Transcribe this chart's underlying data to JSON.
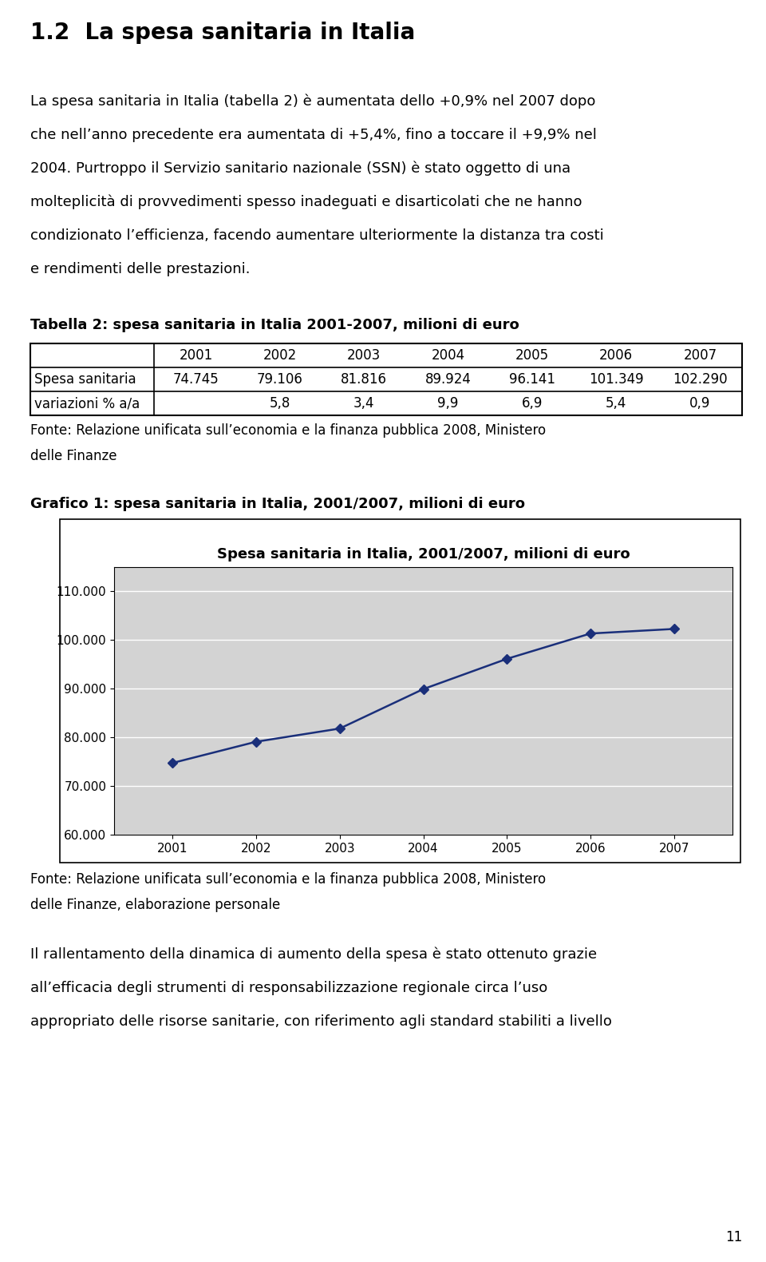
{
  "page_title": "1.2  La spesa sanitaria in Italia",
  "para1_lines": [
    "La spesa sanitaria in Italia (tabella 2) è aumentata dello +0,9% nel 2007 dopo",
    "che nell’anno precedente era aumentata di +5,4%, fino a toccare il +9,9% nel",
    "2004. Purtroppo il Servizio sanitario nazionale (SSN) è stato oggetto di una",
    "molteplicità di provvedimenti spesso inadeguati e disarticolati che ne hanno",
    "condizionato l’efficienza, facendo aumentare ulteriormente la distanza tra costi",
    "e rendimenti delle prestazioni."
  ],
  "table_title": "Tabella 2: spesa sanitaria in Italia 2001-2007, milioni di euro",
  "table_years": [
    "2001",
    "2002",
    "2003",
    "2004",
    "2005",
    "2006",
    "2007"
  ],
  "table_row1_label": "Spesa sanitaria",
  "table_row1_values": [
    "74.745",
    "79.106",
    "81.816",
    "89.924",
    "96.141",
    "101.349",
    "102.290"
  ],
  "table_row2_label": "variazioni % a/a",
  "table_row2_values": [
    "",
    "5,8",
    "3,4",
    "9,9",
    "6,9",
    "5,4",
    "0,9"
  ],
  "table_source_lines": [
    "Fonte: Relazione unificata sull’economia e la finanza pubblica 2008, Ministero",
    "delle Finanze"
  ],
  "chart_section_title": "Grafico 1: spesa sanitaria in Italia, 2001/2007, milioni di euro",
  "chart_inner_title": "Spesa sanitaria in Italia, 2001/2007, milioni di euro",
  "chart_years": [
    2001,
    2002,
    2003,
    2004,
    2005,
    2006,
    2007
  ],
  "chart_values": [
    74745,
    79106,
    81816,
    89924,
    96141,
    101349,
    102290
  ],
  "chart_ylim": [
    60000,
    115000
  ],
  "chart_yticks": [
    60000,
    70000,
    80000,
    90000,
    100000,
    110000
  ],
  "chart_ytick_labels": [
    "60.000",
    "70.000",
    "80.000",
    "90.000",
    "100.000",
    "110.000"
  ],
  "chart_bg_color": "#d3d3d3",
  "chart_line_color": "#1a2f7a",
  "chart_marker_color": "#1a2f7a",
  "chart_source_lines": [
    "Fonte: Relazione unificata sull’economia e la finanza pubblica 2008, Ministero",
    "delle Finanze, elaborazione personale"
  ],
  "para2_lines": [
    "Il rallentamento della dinamica di aumento della spesa è stato ottenuto grazie",
    "all’efficacia degli strumenti di responsabilizzazione regionale circa l’uso",
    "appropriato delle risorse sanitarie, con riferimento agli standard stabiliti a livello"
  ],
  "page_number": "11",
  "text_color": "#000000",
  "bg_color": "#ffffff"
}
